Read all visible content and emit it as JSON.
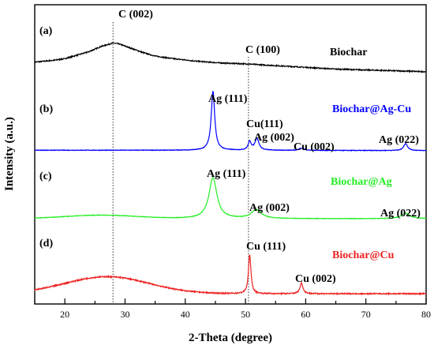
{
  "chart_data": {
    "type": "line",
    "xlabel": "2-Theta (degree)",
    "ylabel": "Intensity (a.u.)",
    "xlim": [
      15,
      80
    ],
    "x_ticks": [
      20,
      30,
      40,
      50,
      60,
      70,
      80
    ],
    "x_tick_labels": [
      "20",
      "30",
      "40",
      "50",
      "60",
      "70",
      "80"
    ],
    "y_ticks_shown": false,
    "grid": false,
    "reference_lines": [
      {
        "x": 28.0,
        "label": "C (002)"
      },
      {
        "x": 50.5,
        "label": "C (100)"
      }
    ],
    "series": [
      {
        "name": "Biochar",
        "panel": "(a)",
        "color": "#000000",
        "baseline": 0.0,
        "noise": 0.006,
        "points": [
          [
            15,
            0.03
          ],
          [
            18,
            0.05
          ],
          [
            20,
            0.07
          ],
          [
            22,
            0.11
          ],
          [
            24,
            0.15
          ],
          [
            26,
            0.21
          ],
          [
            28,
            0.25
          ],
          [
            29,
            0.24
          ],
          [
            31,
            0.19
          ],
          [
            33,
            0.14
          ],
          [
            35,
            0.1
          ],
          [
            38,
            0.07
          ],
          [
            42,
            0.04
          ],
          [
            46,
            0.02
          ],
          [
            50,
            0.01
          ],
          [
            55,
            -0.01
          ],
          [
            60,
            -0.03
          ],
          [
            65,
            -0.05
          ],
          [
            70,
            -0.06
          ],
          [
            75,
            -0.07
          ],
          [
            80,
            -0.08
          ]
        ]
      },
      {
        "name": "Biochar@Ag-Cu",
        "panel": "(b)",
        "color": "#0000ff",
        "baseline": 0.0,
        "noise": 0.004,
        "broad": [
          15,
          80,
          0.02
        ],
        "peaks": [
          {
            "x": 44.6,
            "height": 0.85,
            "width": 0.35,
            "label": "Ag (111)"
          },
          {
            "x": 50.7,
            "height": 0.12,
            "width": 0.3,
            "label": "Cu(111)"
          },
          {
            "x": 51.9,
            "height": 0.17,
            "width": 0.4,
            "label": "Ag (002)"
          },
          {
            "x": 59.3,
            "height": 0.03,
            "width": 0.5,
            "label": "Cu (002)"
          },
          {
            "x": 76.6,
            "height": 0.1,
            "width": 0.4,
            "label": "Ag (022)"
          }
        ]
      },
      {
        "name": "Biochar@Ag",
        "panel": "(c)",
        "color": "#22ee22",
        "baseline": 0.0,
        "noise": 0.004,
        "broad": [
          26,
          6,
          0.06
        ],
        "peaks": [
          {
            "x": 44.6,
            "height": 0.7,
            "width": 0.8,
            "label": "Ag (111)"
          },
          {
            "x": 51.8,
            "height": 0.15,
            "width": 1.0,
            "label": "Ag (002)"
          },
          {
            "x": 76.6,
            "height": 0.09,
            "width": 0.9,
            "label": "Ag (022)"
          }
        ]
      },
      {
        "name": "Biochar@Cu",
        "panel": "(d)",
        "color": "#ee2222",
        "baseline": 0.0,
        "noise": 0.008,
        "broad": [
          27,
          7,
          0.24
        ],
        "peaks": [
          {
            "x": 50.7,
            "height": 0.55,
            "width": 0.25,
            "label": "Cu (111)"
          },
          {
            "x": 59.3,
            "height": 0.15,
            "width": 0.3,
            "label": "Cu (002)"
          }
        ]
      }
    ]
  }
}
